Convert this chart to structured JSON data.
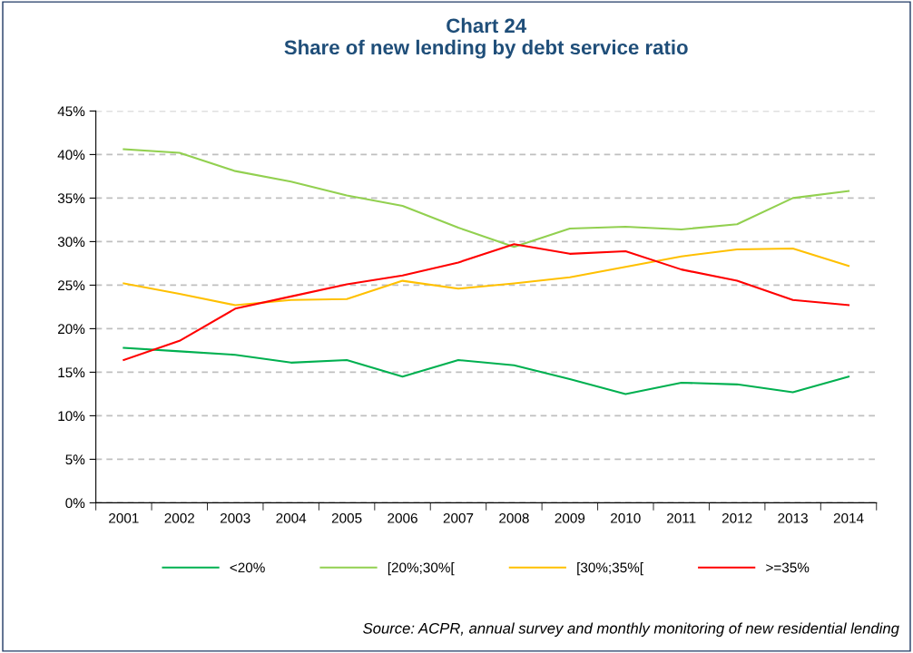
{
  "chart_data": {
    "type": "line",
    "title": "Chart 24\nShare of new lending by debt service ratio",
    "categories": [
      "2001",
      "2002",
      "2003",
      "2004",
      "2005",
      "2006",
      "2007",
      "2008",
      "2009",
      "2010",
      "2011",
      "2012",
      "2013",
      "2014"
    ],
    "series": [
      {
        "name": "<20%",
        "color": "#00b050",
        "values": [
          17.8,
          17.4,
          17.0,
          16.1,
          16.4,
          14.5,
          16.4,
          15.8,
          14.2,
          12.5,
          13.8,
          13.6,
          12.7,
          14.5
        ]
      },
      {
        "name": "[20%;30%[",
        "color": "#92d050",
        "values": [
          40.6,
          40.2,
          38.1,
          36.9,
          35.3,
          34.1,
          31.6,
          29.4,
          31.5,
          31.7,
          31.4,
          32.0,
          35.0,
          35.8
        ]
      },
      {
        "name": "[30%;35%[",
        "color": "#ffc000",
        "values": [
          25.2,
          24.0,
          22.7,
          23.3,
          23.4,
          25.5,
          24.6,
          25.2,
          25.9,
          27.1,
          28.3,
          29.1,
          29.2,
          27.2
        ]
      },
      {
        "name": ">=35%",
        "color": "#ff0000",
        "values": [
          16.4,
          18.6,
          22.3,
          23.7,
          25.1,
          26.1,
          27.6,
          29.7,
          28.6,
          28.9,
          26.8,
          25.5,
          23.3,
          22.7
        ]
      }
    ],
    "ylim": [
      0,
      45
    ],
    "yticks": [
      {
        "value": 0,
        "label": "0%"
      },
      {
        "value": 5,
        "label": "5%"
      },
      {
        "value": 10,
        "label": "10%"
      },
      {
        "value": 15,
        "label": "15%"
      },
      {
        "value": 20,
        "label": "20%"
      },
      {
        "value": 25,
        "label": "25%"
      },
      {
        "value": 30,
        "label": "30%"
      },
      {
        "value": 35,
        "label": "35%"
      },
      {
        "value": 40,
        "label": "40%"
      },
      {
        "value": 45,
        "label": "45%"
      }
    ],
    "grid": "y",
    "legend": "bottom",
    "marker": "none",
    "line_style": "solid",
    "annotations": [
      "Source: ACPR, annual survey and monthly monitoring of new residential lending"
    ]
  }
}
